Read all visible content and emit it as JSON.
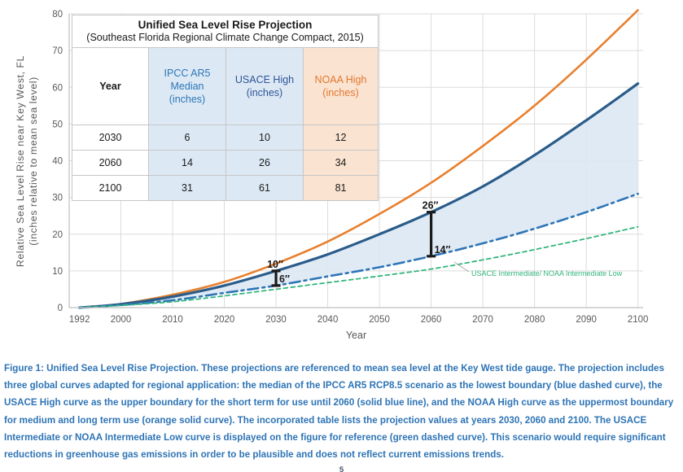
{
  "table": {
    "title": "Unified Sea Level Rise Projection",
    "subtitle": "(Southeast Florida Regional Climate Change Compact, 2015)",
    "columns": {
      "year": "Year",
      "ipcc": "IPCC AR5\nMedian\n(inches)",
      "usace": "USACE High\n(inches)",
      "noaa": "NOAA High\n(inches)"
    },
    "rows": [
      {
        "year": "2030",
        "ipcc": "6",
        "usace": "10",
        "noaa": "12"
      },
      {
        "year": "2060",
        "ipcc": "14",
        "usace": "26",
        "noaa": "34"
      },
      {
        "year": "2100",
        "ipcc": "31",
        "usace": "61",
        "noaa": "81"
      }
    ]
  },
  "caption": {
    "text": "Figure 1: Unified Sea Level Rise Projection. These projections are referenced to mean sea level at the Key West tide gauge. The projection includes three global curves adapted for regional application: the median of the IPCC AR5 RCP8.5 scenario as the lowest boundary (blue dashed curve), the USACE High curve as the upper boundary for the short term for use until 2060 (solid blue line), and the NOAA High curve as the uppermost boundary for medium and long term use (orange solid curve). The incorporated table lists the projection values at years 2030, 2060 and 2100. The USACE Intermediate or NOAA Intermediate Low curve is displayed on the figure for reference (green dashed curve). This scenario would require significant reductions in greenhouse gas emissions in order to be plausible and does not reflect current emissions trends."
  },
  "page": {
    "page_number": "5"
  },
  "chart_data": {
    "type": "line",
    "title": "Unified Sea Level Rise Projection",
    "subtitle": "(Southeast Florida Regional Climate Change Compact, 2015)",
    "xlabel": "Year",
    "ylabel_line1": "Relative Sea Level Rise near Key West, FL",
    "ylabel_line2": "(inches relative to mean sea level)",
    "xlim": [
      1990,
      2101
    ],
    "ylim": [
      0,
      80
    ],
    "grid": true,
    "legend_position": "none",
    "x_ticks": [
      1992,
      2000,
      2010,
      2020,
      2030,
      2040,
      2050,
      2060,
      2070,
      2080,
      2090,
      2100
    ],
    "y_ticks": [
      0,
      10,
      20,
      30,
      40,
      50,
      60,
      70,
      80
    ],
    "x": [
      1992,
      2000,
      2010,
      2020,
      2030,
      2040,
      2050,
      2060,
      2070,
      2080,
      2090,
      2100
    ],
    "series": [
      {
        "name": "NOAA High",
        "color": "#e8802e",
        "style": "solid",
        "width": 2.6,
        "values": [
          0,
          1.0,
          3.5,
          7.0,
          12,
          18.0,
          25.5,
          34,
          44.0,
          55.0,
          67.5,
          81
        ]
      },
      {
        "name": "USACE High",
        "color": "#2a5c8a",
        "style": "solid",
        "width": 3.2,
        "values": [
          0,
          0.9,
          3.0,
          6.0,
          10,
          14.5,
          20.0,
          26,
          33.0,
          41.5,
          51.0,
          61
        ]
      },
      {
        "name": "IPCC AR5 Median",
        "color": "#2e75b6",
        "style": "dashdot",
        "width": 2.6,
        "values": [
          0,
          0.7,
          2.0,
          4.0,
          6,
          8.5,
          11.0,
          14,
          17.5,
          21.5,
          26.0,
          31
        ]
      },
      {
        "name": "USACE Intermediate/ NOAA Intermediate Low",
        "color": "#33b57c",
        "style": "dashed",
        "width": 1.8,
        "values": [
          0,
          0.6,
          1.6,
          3.2,
          5,
          6.8,
          8.6,
          10.5,
          13.0,
          15.8,
          18.8,
          22
        ]
      }
    ],
    "band": {
      "upper": "USACE High",
      "lower": "IPCC AR5 Median",
      "color": "#dce8f4"
    },
    "annotations": [
      {
        "year": 2030,
        "low": 6,
        "high": 10,
        "high_label": "10″",
        "low_label": "6″"
      },
      {
        "year": 2060,
        "low": 14,
        "high": 26,
        "high_label": "26″",
        "low_label": "14″"
      }
    ],
    "series_label": {
      "text": "USACE Intermediate/ NOAA Intermediate Low",
      "color": "#33b57c"
    },
    "axis_text_color": "#595959",
    "grid_color": "#dcdcdc",
    "axis_line_color": "#bfbfbf"
  }
}
